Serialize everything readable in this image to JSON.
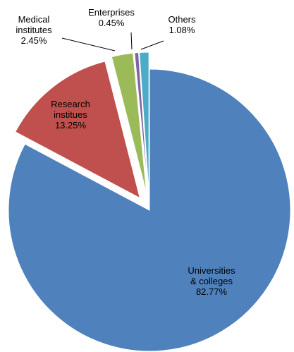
{
  "chart_data": {
    "type": "pie",
    "categories": [
      "Universities\n& colleges",
      "Research\ninstitues",
      "Medical\ninstitutes",
      "Enterprises",
      "Others"
    ],
    "values": [
      82.77,
      13.25,
      2.45,
      0.45,
      1.08
    ],
    "value_labels": [
      "82.77%",
      "13.25%",
      "2.45%",
      "0.45%",
      "1.08%"
    ],
    "colors": [
      "#4f81bd",
      "#c0504d",
      "#9bbb59",
      "#8064a2",
      "#4bacc6"
    ]
  }
}
